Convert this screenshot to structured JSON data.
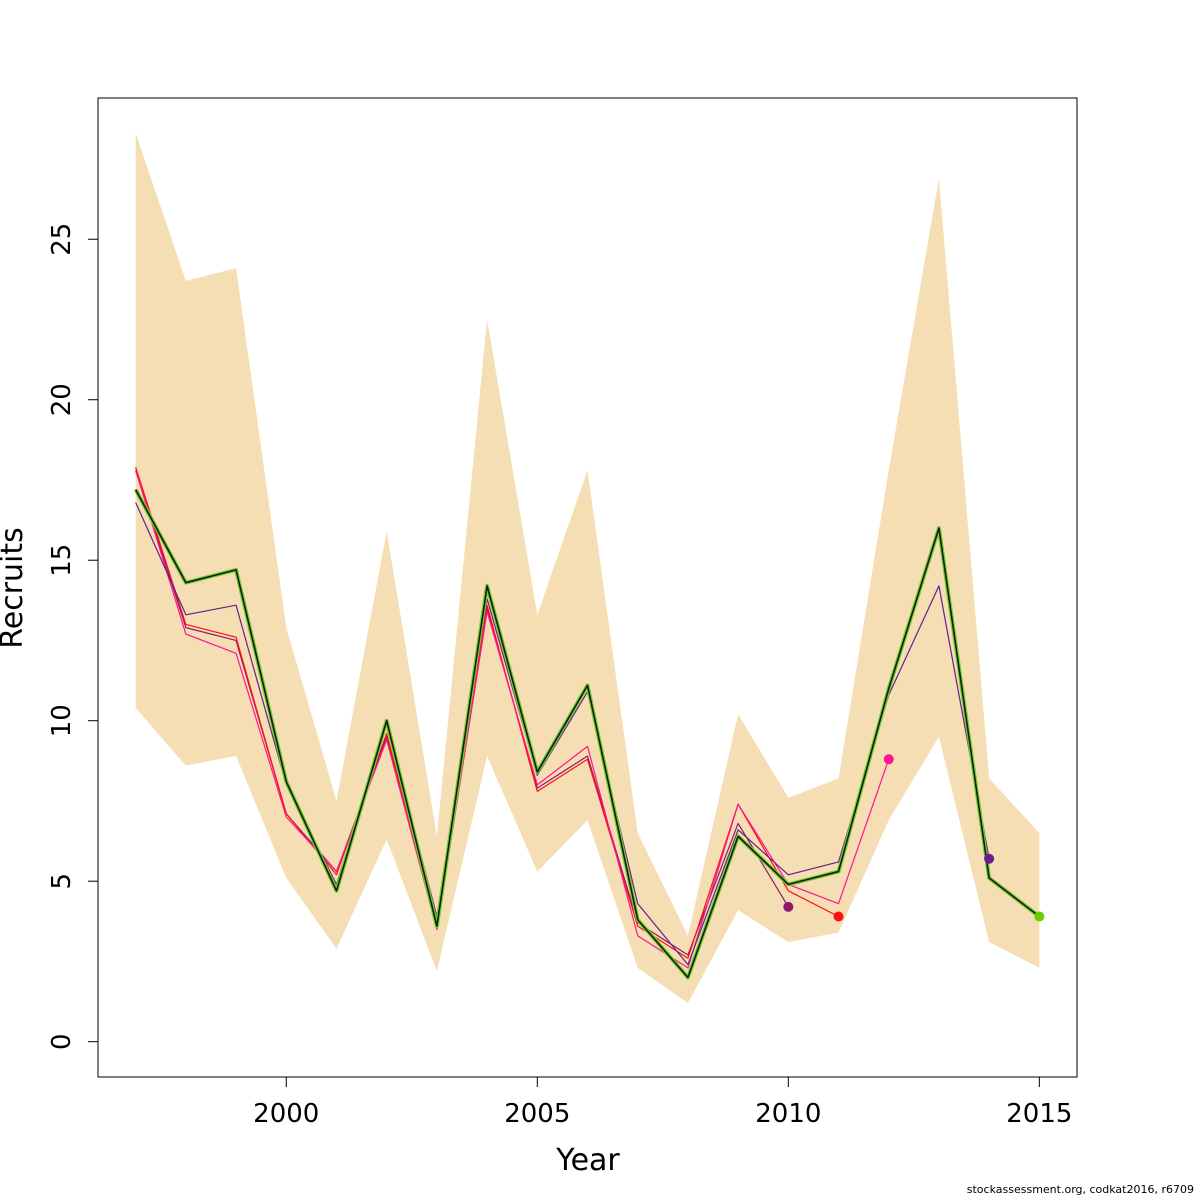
{
  "chart_data": {
    "type": "line",
    "xlabel": "Year",
    "ylabel": "Recruits",
    "xlim": [
      1996.25,
      2015.75
    ],
    "ylim": [
      -1.1,
      29.4
    ],
    "x_ticks": [
      2000,
      2005,
      2010,
      2015
    ],
    "y_ticks": [
      0,
      5,
      10,
      15,
      20,
      25
    ],
    "grid": false,
    "legend": "none",
    "colors": {
      "band": "#F5DEB3",
      "main_outer": "#6BD12A",
      "main_inner": "#1a1a1a",
      "retro_1": "#8B1A6B",
      "retro_2": "#FF1010",
      "retro_3": "#FF1493",
      "retro_4": "#6A1E8C",
      "retro_5": "#66CD00"
    },
    "confidence_band": {
      "x": [
        1997,
        1998,
        1999,
        2000,
        2001,
        2002,
        2003,
        2004,
        2005,
        2006,
        2007,
        2008,
        2009,
        2010,
        2011,
        2012,
        2013,
        2014,
        2015
      ],
      "upper": [
        28.3,
        23.7,
        24.1,
        12.9,
        7.5,
        15.9,
        6.4,
        22.5,
        13.3,
        17.8,
        6.5,
        3.3,
        10.2,
        7.6,
        8.2,
        17.8,
        26.9,
        8.2,
        6.5
      ],
      "lower": [
        10.4,
        8.6,
        8.9,
        5.1,
        2.9,
        6.3,
        2.2,
        8.9,
        5.3,
        6.9,
        2.3,
        1.2,
        4.1,
        3.1,
        3.4,
        6.9,
        9.5,
        3.1,
        2.3
      ]
    },
    "series": [
      {
        "x": [
          1997,
          1998,
          1999,
          2000,
          2001,
          2002,
          2003,
          2004,
          2005,
          2006,
          2007,
          2008,
          2009,
          2010,
          2011,
          2012,
          2013,
          2014,
          2015
        ],
        "values": [
          17.2,
          14.3,
          14.7,
          8.1,
          4.7,
          10.0,
          3.6,
          14.2,
          8.4,
          11.1,
          3.8,
          2.0,
          6.4,
          4.9,
          5.3,
          11.0,
          16.0,
          5.1,
          3.9
        ],
        "color_key": "main",
        "endpoint": true
      },
      {
        "x": [
          1997,
          1998,
          1999,
          2000,
          2001,
          2002,
          2003,
          2004,
          2005,
          2006,
          2007,
          2008,
          2009,
          2010,
          2011,
          2012,
          2013,
          2014
        ],
        "values": [
          16.8,
          13.3,
          13.6,
          8.0,
          4.9,
          9.9,
          3.9,
          13.8,
          8.3,
          10.9,
          4.3,
          2.4,
          6.6,
          5.2,
          5.6,
          10.8,
          14.2,
          5.7
        ],
        "color_key": "retro_4",
        "endpoint": true
      },
      {
        "x": [
          1997,
          1998,
          1999,
          2000,
          2001,
          2002,
          2003,
          2004,
          2005,
          2006,
          2007,
          2008,
          2009,
          2010,
          2011,
          2012
        ],
        "values": [
          17.8,
          12.7,
          12.1,
          7.0,
          5.3,
          9.4,
          3.5,
          13.4,
          8.0,
          9.2,
          3.3,
          2.3,
          7.4,
          4.9,
          4.3,
          8.8
        ],
        "color_key": "retro_3",
        "endpoint": true
      },
      {
        "x": [
          1997,
          1998,
          1999,
          2000,
          2001,
          2002,
          2003,
          2004,
          2005,
          2006,
          2007,
          2008,
          2009,
          2010,
          2011
        ],
        "values": [
          17.9,
          13.0,
          12.6,
          7.1,
          5.2,
          9.6,
          3.5,
          13.6,
          7.8,
          8.8,
          3.6,
          2.6,
          7.4,
          4.7,
          3.9
        ],
        "color_key": "retro_2",
        "endpoint": true
      },
      {
        "x": [
          1997,
          1998,
          1999,
          2000,
          2001,
          2002,
          2003,
          2004,
          2005,
          2006,
          2007,
          2008,
          2009,
          2010
        ],
        "values": [
          17.8,
          12.9,
          12.5,
          7.1,
          5.3,
          9.5,
          3.6,
          13.5,
          7.9,
          8.9,
          3.7,
          2.7,
          6.8,
          4.2
        ],
        "color_key": "retro_1",
        "endpoint": true
      }
    ]
  },
  "footer": {
    "note": "stockassessment.org, codkat2016, r6709"
  }
}
